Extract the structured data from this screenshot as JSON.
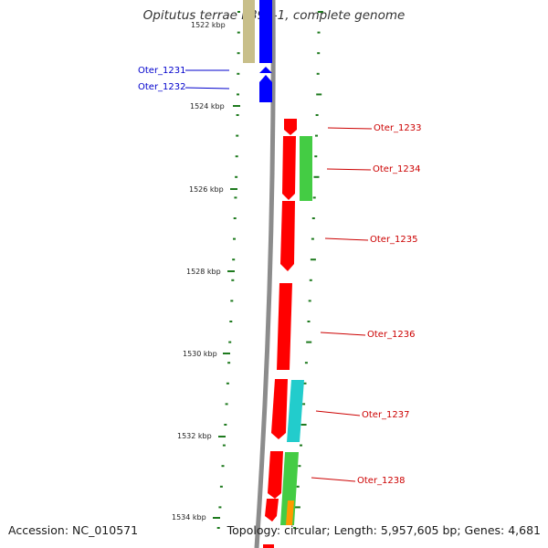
{
  "title": "Opitutus terrae PB90-1, complete genome",
  "footer": {
    "accession": "Accession: NC_010571",
    "summary": "Topology: circular; Length: 5,957,605 bp; Genes: 4,681"
  },
  "colors": {
    "backbone": "#8c8c8c",
    "tick": "#1e7a1e",
    "gene_forward": "#0000ff",
    "gene_reverse": "#ff0000",
    "gene_olive": "#c8bf8a",
    "gene_green": "#44cc44",
    "gene_cyan": "#22cccc",
    "gene_orange": "#ff9900",
    "label_blue": "#0000cc",
    "label_red": "#cc0000"
  },
  "top_tick_label": "1522 kbp",
  "kbp_ticks": [
    "1524 kbp",
    "1526 kbp",
    "1528 kbp",
    "1530 kbp",
    "1532 kbp",
    "1534 kbp"
  ],
  "gene_labels": [
    {
      "name": "Oter_1231",
      "color": "label_blue"
    },
    {
      "name": "Oter_1232",
      "color": "label_blue"
    },
    {
      "name": "Oter_1233",
      "color": "label_red"
    },
    {
      "name": "Oter_1234",
      "color": "label_red"
    },
    {
      "name": "Oter_1235",
      "color": "label_red"
    },
    {
      "name": "Oter_1236",
      "color": "label_red"
    },
    {
      "name": "Oter_1237",
      "color": "label_red"
    },
    {
      "name": "Oter_1238",
      "color": "label_red"
    }
  ]
}
